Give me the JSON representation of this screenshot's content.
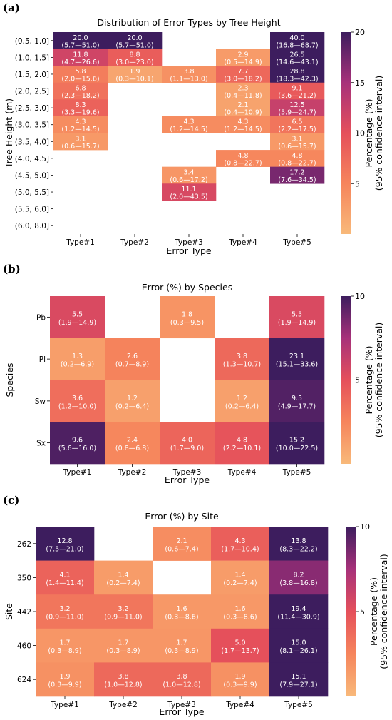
{
  "chart_data": [
    {
      "panel_label": "(a)",
      "type": "heatmap",
      "title": "Distribution of Error Types by Tree Height",
      "xlabel": "Error Type",
      "ylabel": "Tree Height (m)",
      "categories": [
        "Type#1",
        "Type#2",
        "Type#3",
        "Type#4",
        "Type#5"
      ],
      "rows": [
        "(0.5, 1.0]",
        "(1.0, 1.5]",
        "(1.5, 2.0]",
        "(2.0, 2.5]",
        "(2.5, 3.0]",
        "(3.0, 3.5]",
        "(3.5, 4.0]",
        "(4.0, 4.5]",
        "(4.5, 5.0]",
        "(5.0, 5.5]",
        "(5.5, 6.0]",
        "(6.0, 8.0]"
      ],
      "cells": [
        [
          {
            "v": 20.0,
            "ci": "(5.7—51.0)"
          },
          {
            "v": 20.0,
            "ci": "(5.7—51.0)"
          },
          null,
          null,
          {
            "v": 40.0,
            "ci": "(16.8—68.7)"
          }
        ],
        [
          {
            "v": 11.8,
            "ci": "(4.7—26.6)"
          },
          {
            "v": 8.8,
            "ci": "(3.0—23.0)"
          },
          null,
          {
            "v": 2.9,
            "ci": "(0.5—14.9)"
          },
          {
            "v": 26.5,
            "ci": "(14.6—43.1)"
          }
        ],
        [
          {
            "v": 5.8,
            "ci": "(2.0—15.6)"
          },
          {
            "v": 1.9,
            "ci": "(0.3—10.1)"
          },
          {
            "v": 3.8,
            "ci": "(1.1—13.0)"
          },
          {
            "v": 7.7,
            "ci": "(3.0—18.2)"
          },
          {
            "v": 28.8,
            "ci": "(18.3—42.3)"
          }
        ],
        [
          {
            "v": 6.8,
            "ci": "(2.3—18.2)"
          },
          null,
          null,
          {
            "v": 2.3,
            "ci": "(0.4—11.8)"
          },
          {
            "v": 9.1,
            "ci": "(3.6—21.2)"
          }
        ],
        [
          {
            "v": 8.3,
            "ci": "(3.3—19.6)"
          },
          null,
          null,
          {
            "v": 2.1,
            "ci": "(0.4—10.9)"
          },
          {
            "v": 12.5,
            "ci": "(5.9—24.7)"
          }
        ],
        [
          {
            "v": 4.3,
            "ci": "(1.2—14.5)"
          },
          null,
          {
            "v": 4.3,
            "ci": "(1.2—14.5)"
          },
          {
            "v": 4.3,
            "ci": "(1.2—14.5)"
          },
          {
            "v": 6.5,
            "ci": "(2.2—17.5)"
          }
        ],
        [
          {
            "v": 3.1,
            "ci": "(0.6—15.7)"
          },
          null,
          null,
          null,
          {
            "v": 3.1,
            "ci": "(0.6—15.7)"
          }
        ],
        [
          null,
          null,
          null,
          {
            "v": 4.8,
            "ci": "(0.8—22.7)"
          },
          {
            "v": 4.8,
            "ci": "(0.8—22.7)"
          }
        ],
        [
          null,
          null,
          {
            "v": 3.4,
            "ci": "(0.6—17.2)"
          },
          null,
          {
            "v": 17.2,
            "ci": "(7.6—34.5)"
          }
        ],
        [
          null,
          null,
          {
            "v": 11.1,
            "ci": "(2.0—43.5)"
          },
          null,
          null
        ],
        [
          null,
          null,
          null,
          null,
          null
        ],
        [
          null,
          null,
          null,
          null,
          null
        ]
      ],
      "colorbar": {
        "label_line1": "Percentage (%)",
        "label_line2": "(95% confidence interval)",
        "vmin": 0,
        "vmax": 20,
        "ticks": [
          "5",
          "10",
          "15",
          "20"
        ]
      }
    },
    {
      "panel_label": "(b)",
      "type": "heatmap",
      "title": "Error (%) by Species",
      "xlabel": "Error Type",
      "ylabel": "Species",
      "categories": [
        "Type#1",
        "Type#2",
        "Type#3",
        "Type#4",
        "Type#5"
      ],
      "rows": [
        "Pb",
        "Pl",
        "Sw",
        "Sx"
      ],
      "cells": [
        [
          {
            "v": 5.5,
            "ci": "(1.9—14.9)"
          },
          null,
          {
            "v": 1.8,
            "ci": "(0.3—9.5)"
          },
          null,
          {
            "v": 5.5,
            "ci": "(1.9—14.9)"
          }
        ],
        [
          {
            "v": 1.3,
            "ci": "(0.2—6.9)"
          },
          {
            "v": 2.6,
            "ci": "(0.7—8.9)"
          },
          null,
          {
            "v": 3.8,
            "ci": "(1.3—10.7)"
          },
          {
            "v": 23.1,
            "ci": "(15.1—33.6)"
          }
        ],
        [
          {
            "v": 3.6,
            "ci": "(1.2—10.0)"
          },
          {
            "v": 1.2,
            "ci": "(0.2—6.4)"
          },
          null,
          {
            "v": 1.2,
            "ci": "(0.2—6.4)"
          },
          {
            "v": 9.5,
            "ci": "(4.9—17.7)"
          }
        ],
        [
          {
            "v": 9.6,
            "ci": "(5.6—16.0)"
          },
          {
            "v": 2.4,
            "ci": "(0.8—6.8)"
          },
          {
            "v": 4.0,
            "ci": "(1.7—9.0)"
          },
          {
            "v": 4.8,
            "ci": "(2.2—10.1)"
          },
          {
            "v": 15.2,
            "ci": "(10.0—22.5)"
          }
        ]
      ],
      "colorbar": {
        "label_line1": "Percentage (%)",
        "label_line2": "(95% confidence interval)",
        "vmin": 0,
        "vmax": 10,
        "ticks": [
          "5",
          "10"
        ]
      }
    },
    {
      "panel_label": "(c)",
      "type": "heatmap",
      "title": "Error (%) by Site",
      "xlabel": "Error Type",
      "ylabel": "Site",
      "categories": [
        "Type#1",
        "Type#2",
        "Type#3",
        "Type#4",
        "Type#5"
      ],
      "rows": [
        "262",
        "350",
        "442",
        "460",
        "624"
      ],
      "cells": [
        [
          {
            "v": 12.8,
            "ci": "(7.5—21.0)"
          },
          null,
          {
            "v": 2.1,
            "ci": "(0.6—7.4)"
          },
          {
            "v": 4.3,
            "ci": "(1.7—10.4)"
          },
          {
            "v": 13.8,
            "ci": "(8.3—22.2)"
          }
        ],
        [
          {
            "v": 4.1,
            "ci": "(1.4—11.4)"
          },
          {
            "v": 1.4,
            "ci": "(0.2—7.4)"
          },
          null,
          {
            "v": 1.4,
            "ci": "(0.2—7.4)"
          },
          {
            "v": 8.2,
            "ci": "(3.8—16.8)"
          }
        ],
        [
          {
            "v": 3.2,
            "ci": "(0.9—11.0)"
          },
          {
            "v": 3.2,
            "ci": "(0.9—11.0)"
          },
          {
            "v": 1.6,
            "ci": "(0.3—8.6)"
          },
          {
            "v": 1.6,
            "ci": "(0.3—8.6)"
          },
          {
            "v": 19.4,
            "ci": "(11.4—30.9)"
          }
        ],
        [
          {
            "v": 1.7,
            "ci": "(0.3—8.9)"
          },
          {
            "v": 1.7,
            "ci": "(0.3—8.9)"
          },
          {
            "v": 1.7,
            "ci": "(0.3—8.9)"
          },
          {
            "v": 5.0,
            "ci": "(1.7—13.7)"
          },
          {
            "v": 15.0,
            "ci": "(8.1—26.1)"
          }
        ],
        [
          {
            "v": 1.9,
            "ci": "(0.3—9.9)"
          },
          {
            "v": 3.8,
            "ci": "(1.0—12.8)"
          },
          {
            "v": 3.8,
            "ci": "(1.0—12.8)"
          },
          {
            "v": 1.9,
            "ci": "(0.3—9.9)"
          },
          {
            "v": 15.1,
            "ci": "(7.9—27.1)"
          }
        ]
      ],
      "colorbar": {
        "label_line1": "Percentage (%)",
        "label_line2": "(95% confidence interval)",
        "vmin": 0,
        "vmax": 10,
        "ticks": [
          "5",
          "10"
        ]
      }
    }
  ]
}
